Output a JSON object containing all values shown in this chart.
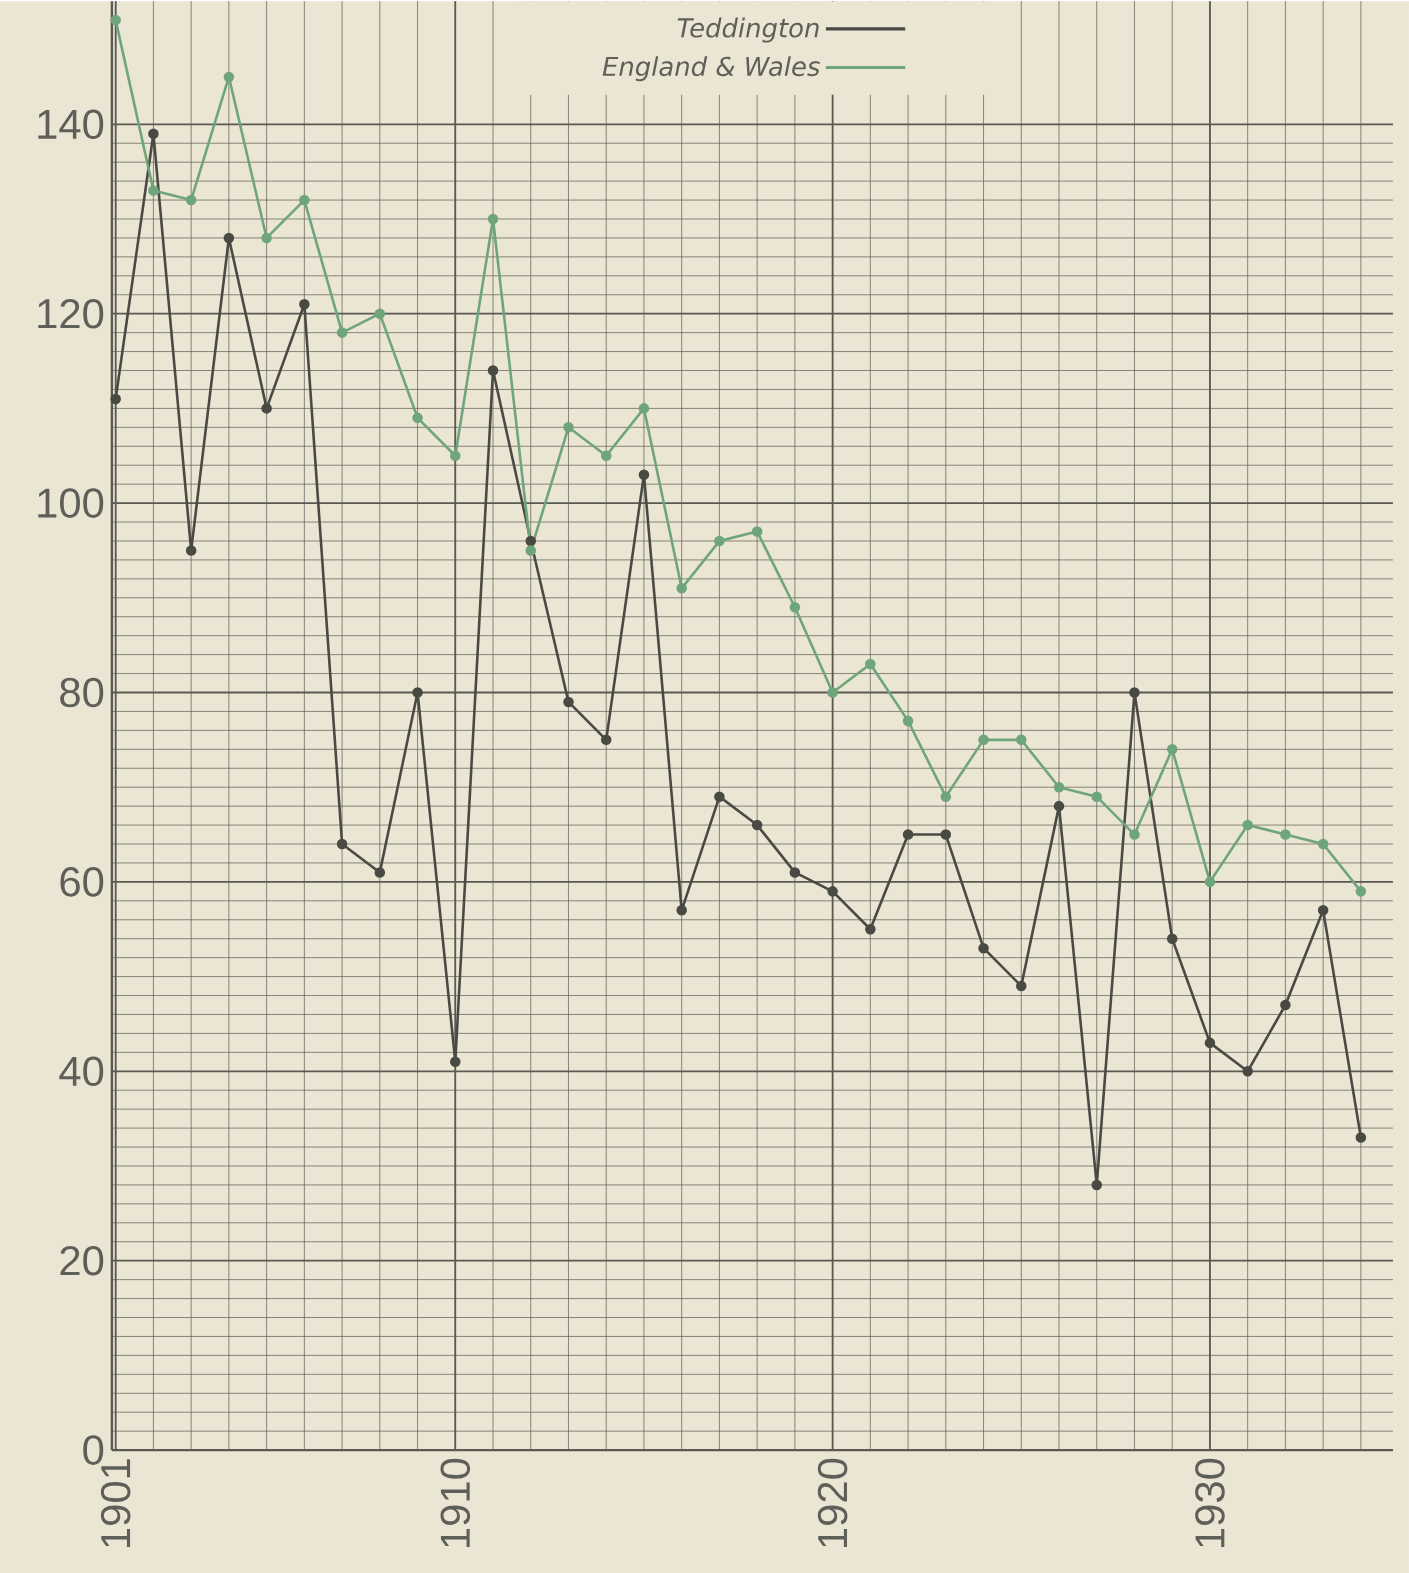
{
  "chart_data": {
    "type": "line",
    "x": [
      1901,
      1902,
      1903,
      1904,
      1905,
      1906,
      1907,
      1908,
      1909,
      1910,
      1911,
      1912,
      1913,
      1914,
      1915,
      1916,
      1917,
      1918,
      1919,
      1920,
      1921,
      1922,
      1923,
      1924,
      1925,
      1926,
      1927,
      1928,
      1929,
      1930,
      1931,
      1932,
      1933,
      1934
    ],
    "series": [
      {
        "name": "Teddington",
        "color": "#4a4a44",
        "values": [
          111,
          139,
          95,
          128,
          110,
          121,
          64,
          61,
          80,
          41,
          114,
          96,
          79,
          75,
          103,
          57,
          69,
          66,
          61,
          59,
          55,
          65,
          65,
          53,
          49,
          68,
          28,
          80,
          54,
          43,
          40,
          47,
          57,
          33
        ]
      },
      {
        "name": "England & Wales",
        "color": "#6fa57a",
        "values": [
          151,
          133,
          132,
          145,
          128,
          132,
          118,
          120,
          109,
          105,
          130,
          95,
          108,
          105,
          110,
          91,
          96,
          97,
          89,
          80,
          83,
          77,
          69,
          75,
          75,
          70,
          69,
          65,
          74,
          60,
          66,
          65,
          64,
          59
        ]
      }
    ],
    "xlim": [
      1900.9,
      1934.85
    ],
    "ylim": [
      0,
      153
    ],
    "xticks": [
      1901,
      1910,
      1920,
      1930
    ],
    "yticks": [
      0,
      20,
      40,
      60,
      80,
      100,
      120,
      140
    ],
    "grid": true,
    "legend": "top",
    "marker": "circle",
    "line_style": "solid"
  }
}
